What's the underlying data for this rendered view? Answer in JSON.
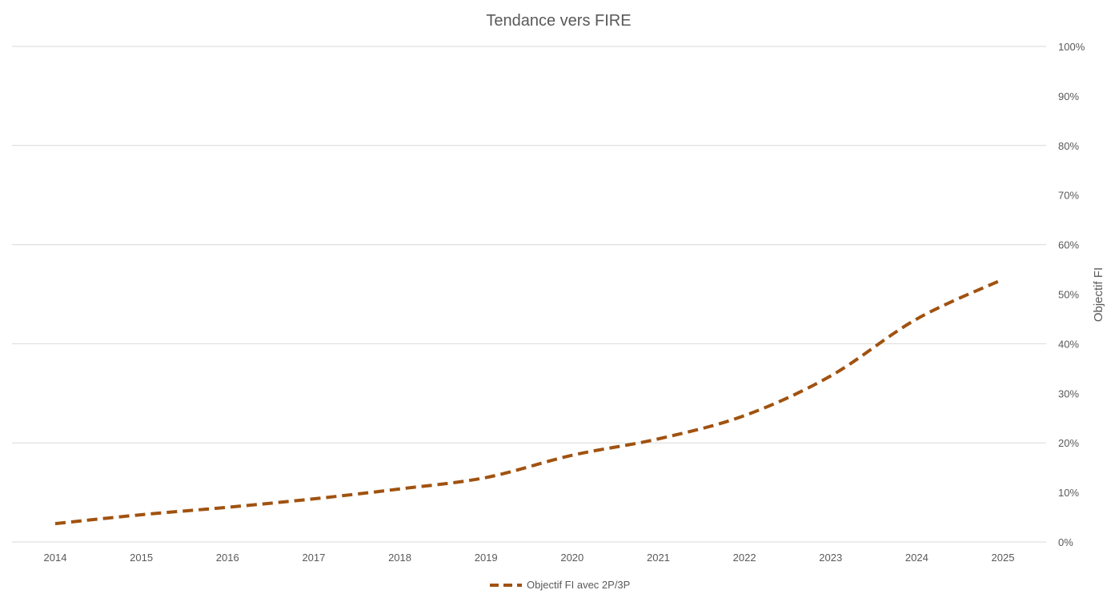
{
  "chart_data": {
    "type": "line",
    "title": "Tendance vers FIRE",
    "ylabel": "Objectif FI",
    "y_axis_side": "right",
    "ylim": [
      0,
      100
    ],
    "yticks": [
      0,
      10,
      20,
      30,
      40,
      50,
      60,
      70,
      80,
      90,
      100
    ],
    "ytick_labels": [
      "0%",
      "10%",
      "20%",
      "30%",
      "40%",
      "50%",
      "60%",
      "70%",
      "80%",
      "90%",
      "100%"
    ],
    "categories": [
      "2014",
      "2015",
      "2016",
      "2017",
      "2018",
      "2019",
      "2020",
      "2021",
      "2022",
      "2023",
      "2024",
      "2025"
    ],
    "grid": "horizontal, every 20%",
    "legend_position": "bottom",
    "series": [
      {
        "name": "Objectif FI avec 2P/3P",
        "color": "#a0520f",
        "style": "dashed",
        "values": [
          3.7,
          5.5,
          7.0,
          8.7,
          10.7,
          13.0,
          17.5,
          20.8,
          25.5,
          33.5,
          45.0,
          53.0
        ]
      }
    ]
  }
}
